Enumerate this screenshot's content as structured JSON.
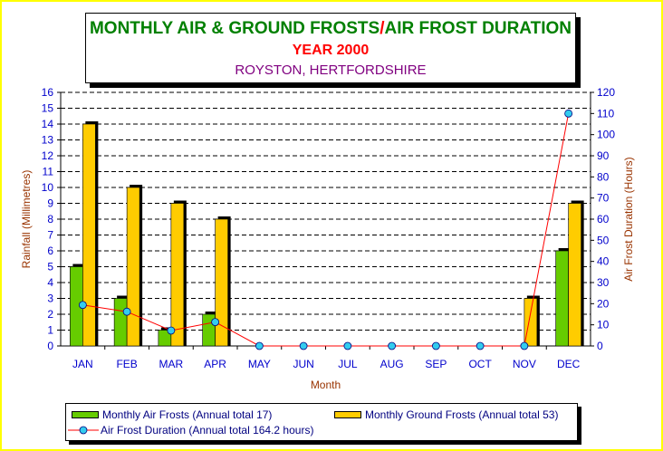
{
  "title": {
    "line1_a": "MONTHLY AIR & GROUND FROSTS",
    "line1_sep": "/",
    "line1_b": "AIR FROST DURATION",
    "line2": "YEAR 2000",
    "line3": "ROYSTON, HERTFORDSHIRE"
  },
  "colors": {
    "air_frost_bar": "#66cc00",
    "ground_frost_bar": "#ffcc00",
    "duration_line": "#ff0000",
    "duration_marker": "#33ccee",
    "axis_text": "#0000cc",
    "axis_title": "#993300"
  },
  "chart_data": {
    "type": "bar",
    "categories": [
      "JAN",
      "FEB",
      "MAR",
      "APR",
      "MAY",
      "JUN",
      "JUL",
      "AUG",
      "SEP",
      "OCT",
      "NOV",
      "DEC"
    ],
    "xlabel": "Month",
    "ylabel": "Rainfall (Millimetres)",
    "y2label": "Air Frost Duration (Hours)",
    "ylim": [
      0,
      16
    ],
    "y2lim": [
      0,
      120
    ],
    "yticks": [
      "0",
      "1",
      "2",
      "3",
      "4",
      "5",
      "6",
      "7",
      "8",
      "9",
      "10",
      "11",
      "12",
      "13",
      "14",
      "15",
      "16"
    ],
    "y2ticks": [
      "0",
      "10",
      "20",
      "30",
      "40",
      "50",
      "60",
      "70",
      "80",
      "90",
      "100",
      "110",
      "120"
    ],
    "grid": "horizontal dashed",
    "legend_position": "bottom",
    "series": [
      {
        "name": "Monthly Air Frosts (Annual total 17)",
        "type": "bar",
        "axis": "left",
        "values": [
          5,
          3,
          1,
          2,
          0,
          0,
          0,
          0,
          0,
          0,
          0,
          6
        ]
      },
      {
        "name": "Monthly Ground Frosts (Annual total 53)",
        "type": "bar",
        "axis": "left",
        "values": [
          14,
          10,
          9,
          8,
          0,
          0,
          0,
          0,
          0,
          0,
          3,
          9
        ]
      },
      {
        "name": "Air Frost Duration (Annual total 164.2 hours)",
        "type": "line",
        "axis": "right",
        "values": [
          19.4,
          16.2,
          7.3,
          11.3,
          0,
          0,
          0,
          0,
          0,
          0,
          0,
          110
        ]
      }
    ]
  }
}
